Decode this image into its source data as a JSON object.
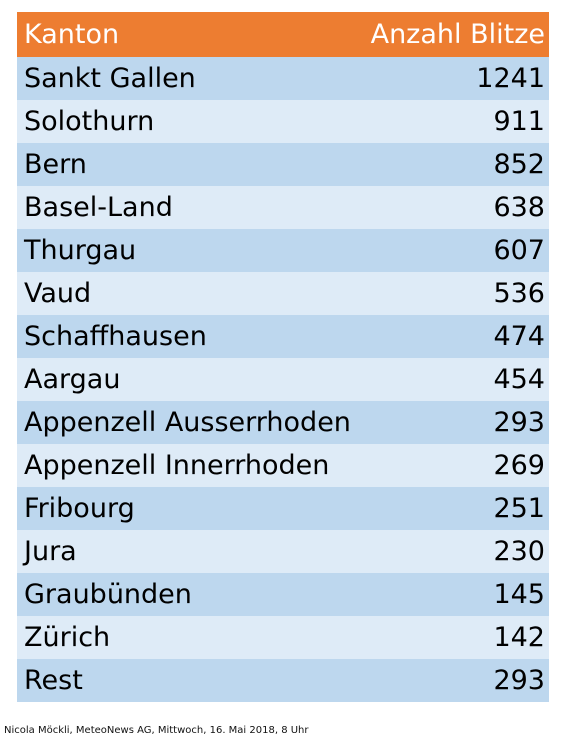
{
  "chart_data": {
    "type": "table",
    "columns": [
      "Kanton",
      "Anzahl Blitze"
    ],
    "rows": [
      {
        "kanton": "Sankt Gallen",
        "value": "1241"
      },
      {
        "kanton": "Solothurn",
        "value": "911"
      },
      {
        "kanton": "Bern",
        "value": "852"
      },
      {
        "kanton": "Basel-Land",
        "value": "638"
      },
      {
        "kanton": "Thurgau",
        "value": "607"
      },
      {
        "kanton": "Vaud",
        "value": "536"
      },
      {
        "kanton": "Schaffhausen",
        "value": "474"
      },
      {
        "kanton": "Aargau",
        "value": "454"
      },
      {
        "kanton": "Appenzell Ausserrhoden",
        "value": "293"
      },
      {
        "kanton": "Appenzell Innerrhoden",
        "value": "269"
      },
      {
        "kanton": "Fribourg",
        "value": "251"
      },
      {
        "kanton": "Jura",
        "value": "230"
      },
      {
        "kanton": "Graubünden",
        "value": "145"
      },
      {
        "kanton": "Zürich",
        "value": "142"
      },
      {
        "kanton": "Rest",
        "value": "293"
      }
    ]
  },
  "footer": "Nicola Möckli, MeteoNews AG, Mittwoch, 16. Mai 2018, 8 Uhr",
  "colors": {
    "header": "#ed7d31",
    "row_dark": "#bdd7ee",
    "row_light": "#deebf7"
  }
}
